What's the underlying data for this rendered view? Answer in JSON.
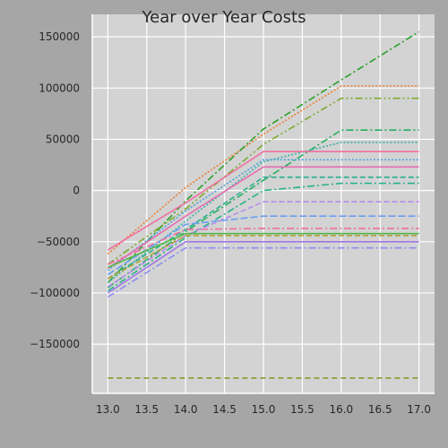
{
  "chart_data": {
    "type": "line",
    "title": "Year over Year Costs",
    "xlabel": "",
    "ylabel": "",
    "xlim": [
      12.8,
      17.2
    ],
    "ylim": [
      -198000,
      172000
    ],
    "x": [
      13.0,
      14.0,
      15.0,
      16.0,
      17.0
    ],
    "x_ticks": [
      13.0,
      13.5,
      14.0,
      14.5,
      15.0,
      15.5,
      16.0,
      16.5,
      17.0
    ],
    "x_tick_labels": [
      "13.0",
      "13.5",
      "14.0",
      "14.5",
      "15.0",
      "15.5",
      "16.0",
      "16.5",
      "17.0"
    ],
    "y_ticks": [
      -150000,
      -100000,
      -50000,
      0,
      50000,
      100000,
      150000
    ],
    "y_tick_labels": [
      "−150000",
      "−100000",
      "−50000",
      "0",
      "50000",
      "100000",
      "150000"
    ],
    "grid": true,
    "legend": "none",
    "colors": {
      "figure_bg": "#a6a6a6",
      "plot_bg": "#d3d3d3",
      "grid": "#ffffff"
    },
    "series": [
      {
        "color": "#ed7d31",
        "dash": "2,2",
        "values": [
          -62000,
          3000,
          55000,
          102000,
          102000
        ]
      },
      {
        "color": "#2ca02c",
        "dash": "8,3,2,3",
        "values": [
          -90000,
          -10000,
          60000,
          108000,
          155000
        ]
      },
      {
        "color": "#7cab2e",
        "dash": "8,3,2,3,2,3",
        "values": [
          -72000,
          -18000,
          45000,
          90000,
          90000
        ]
      },
      {
        "color": "#27ae60",
        "dash": "8,3,2,3",
        "values": [
          -95000,
          -40000,
          10000,
          59000,
          59000
        ]
      },
      {
        "color": "#3bb0a5",
        "dash": "2,2",
        "values": [
          -90000,
          -30000,
          28000,
          47000,
          47000
        ]
      },
      {
        "color": "#f06fa0",
        "dash": "none",
        "values": [
          -58000,
          -12000,
          38000,
          38000,
          38000
        ]
      },
      {
        "color": "#4aa3df",
        "dash": "2,2",
        "values": [
          -78000,
          -20000,
          30000,
          30000,
          30000
        ]
      },
      {
        "color": "#e56db1",
        "dash": "none",
        "values": [
          -76000,
          -25000,
          23000,
          23000,
          23000
        ]
      },
      {
        "color": "#2bae8e",
        "dash": "6,3",
        "values": [
          -86000,
          -38000,
          13000,
          13000,
          13000
        ]
      },
      {
        "color": "#27b38a",
        "dash": "8,3,2,3",
        "values": [
          -98000,
          -46000,
          0,
          7000,
          7000
        ]
      },
      {
        "color": "#b78cf0",
        "dash": "6,3",
        "values": [
          -94000,
          -44000,
          -11000,
          -11000,
          -11000
        ]
      },
      {
        "color": "#6a9ff2",
        "dash": "8,3",
        "values": [
          -82000,
          -33000,
          -25000,
          -25000,
          -25000
        ]
      },
      {
        "color": "#f06fa0",
        "dash": "8,3,2,3",
        "values": [
          -72000,
          -38000,
          -37000,
          -37000,
          -37000
        ]
      },
      {
        "color": "#55b748",
        "dash": "none",
        "values": [
          -75000,
          -42000,
          -42000,
          -42000,
          -42000
        ]
      },
      {
        "color": "#b1a13b",
        "dash": "6,3",
        "values": [
          -86000,
          -44000,
          -44000,
          -44000,
          -44000
        ]
      },
      {
        "color": "#a277e6",
        "dash": "none",
        "values": [
          -100000,
          -50000,
          -50000,
          -50000,
          -50000
        ]
      },
      {
        "color": "#8c8cf5",
        "dash": "8,3,2,3",
        "values": [
          -104000,
          -56000,
          -56000,
          -56000,
          -56000
        ]
      },
      {
        "color": "#8a9a2a",
        "dash": "6,4",
        "values": [
          -183000,
          -183000,
          -183000,
          -183000,
          -183000
        ]
      }
    ]
  }
}
